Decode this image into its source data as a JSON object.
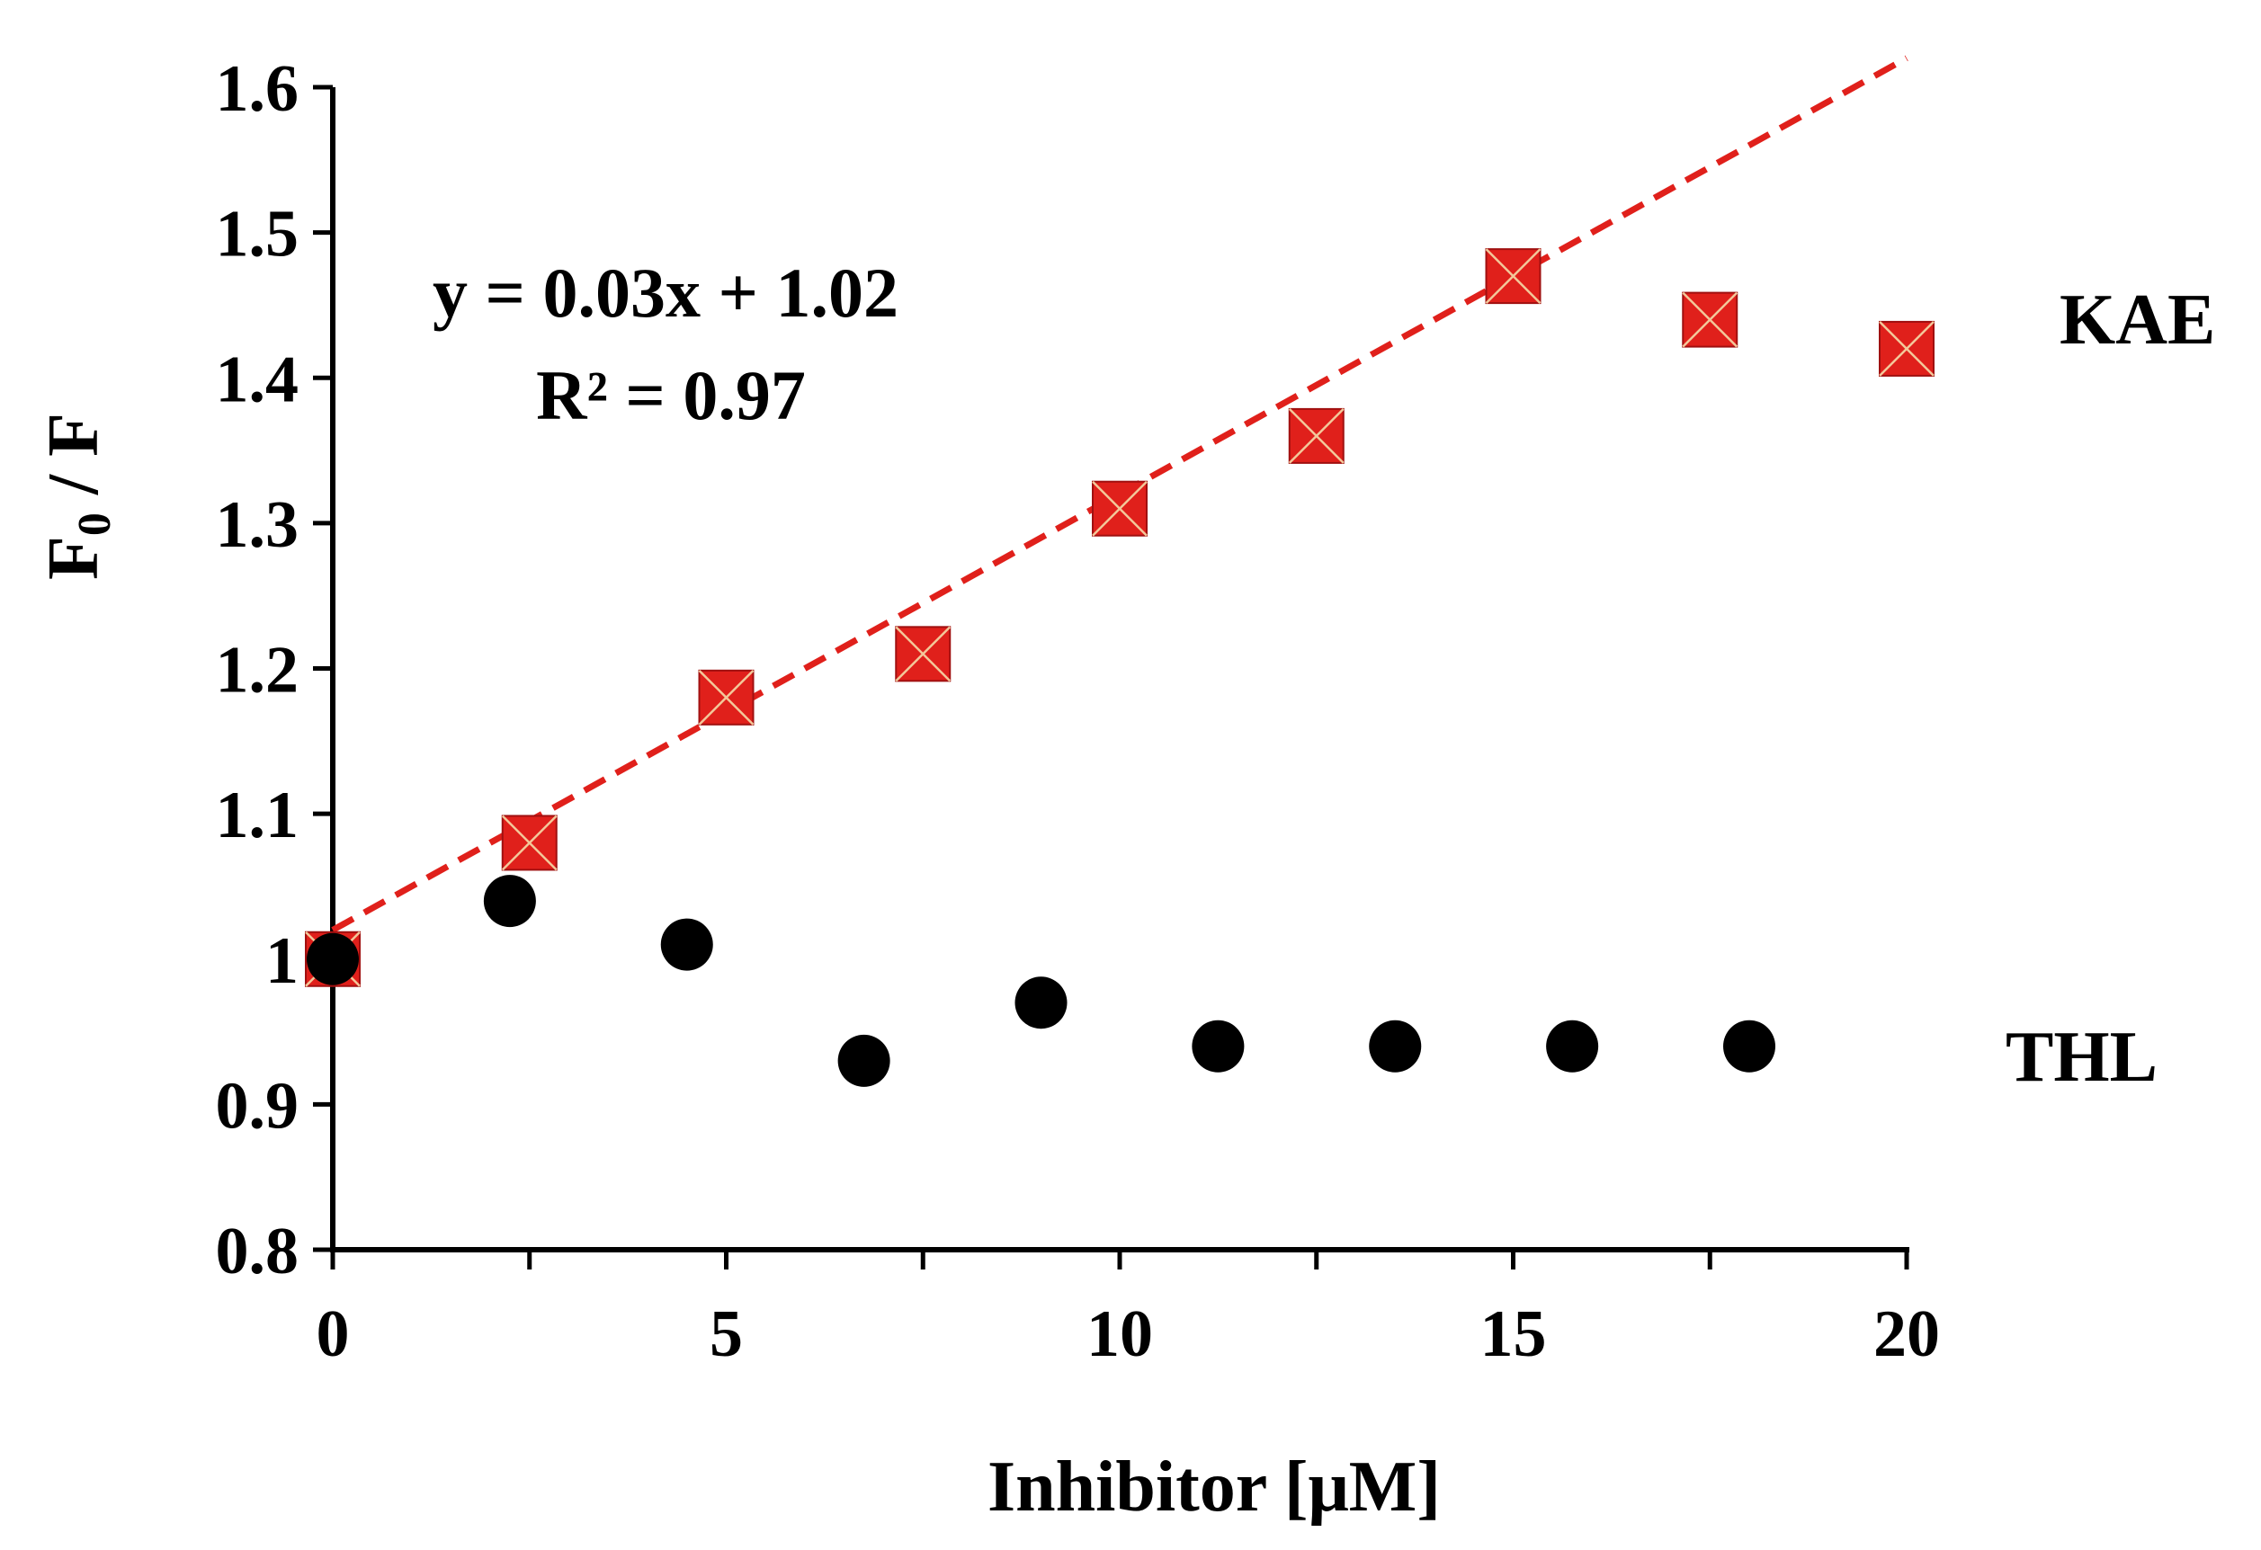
{
  "chart_data": {
    "type": "scatter",
    "title": "",
    "xlabel": "Inhibitor [μM]",
    "ylabel_main": "F",
    "ylabel_sub": "0",
    "ylabel_rest": " / F",
    "xlim": [
      0,
      20
    ],
    "ylim": [
      0.8,
      1.6
    ],
    "x_ticks": [
      0,
      5,
      10,
      15,
      20
    ],
    "x_tick_labels": [
      "0",
      "5",
      "10",
      "15",
      "20"
    ],
    "y_ticks": [
      0.8,
      0.9,
      1.0,
      1.1,
      1.2,
      1.3,
      1.4,
      1.5,
      1.6
    ],
    "y_tick_labels": [
      "0.8",
      "0.9",
      "1",
      "1.1",
      "1.2",
      "1.3",
      "1.4",
      "1.5",
      "1.6"
    ],
    "grid": false,
    "series": [
      {
        "name": "KAE",
        "marker": "square-x",
        "color": "#e0201b",
        "x": [
          0,
          2.5,
          5,
          7.5,
          10,
          12.5,
          15,
          17.5,
          20
        ],
        "y": [
          1.0,
          1.08,
          1.18,
          1.21,
          1.31,
          1.36,
          1.47,
          1.44,
          1.42
        ]
      },
      {
        "name": "THL",
        "marker": "circle",
        "color": "#000000",
        "x": [
          0,
          2.25,
          4.5,
          6.75,
          9,
          11.25,
          13.5,
          15.75,
          18
        ],
        "y": [
          1.0,
          1.04,
          1.01,
          0.93,
          0.97,
          0.94,
          0.94,
          0.94,
          0.94
        ]
      }
    ],
    "trendline": {
      "series": "KAE",
      "slope": 0.03,
      "intercept": 1.02,
      "x_range": [
        0,
        20
      ],
      "color": "#e0201b",
      "style": "dashed"
    },
    "annotations": {
      "equation": "y = 0.03x + 1.02",
      "r2": "R² = 0.97"
    }
  }
}
